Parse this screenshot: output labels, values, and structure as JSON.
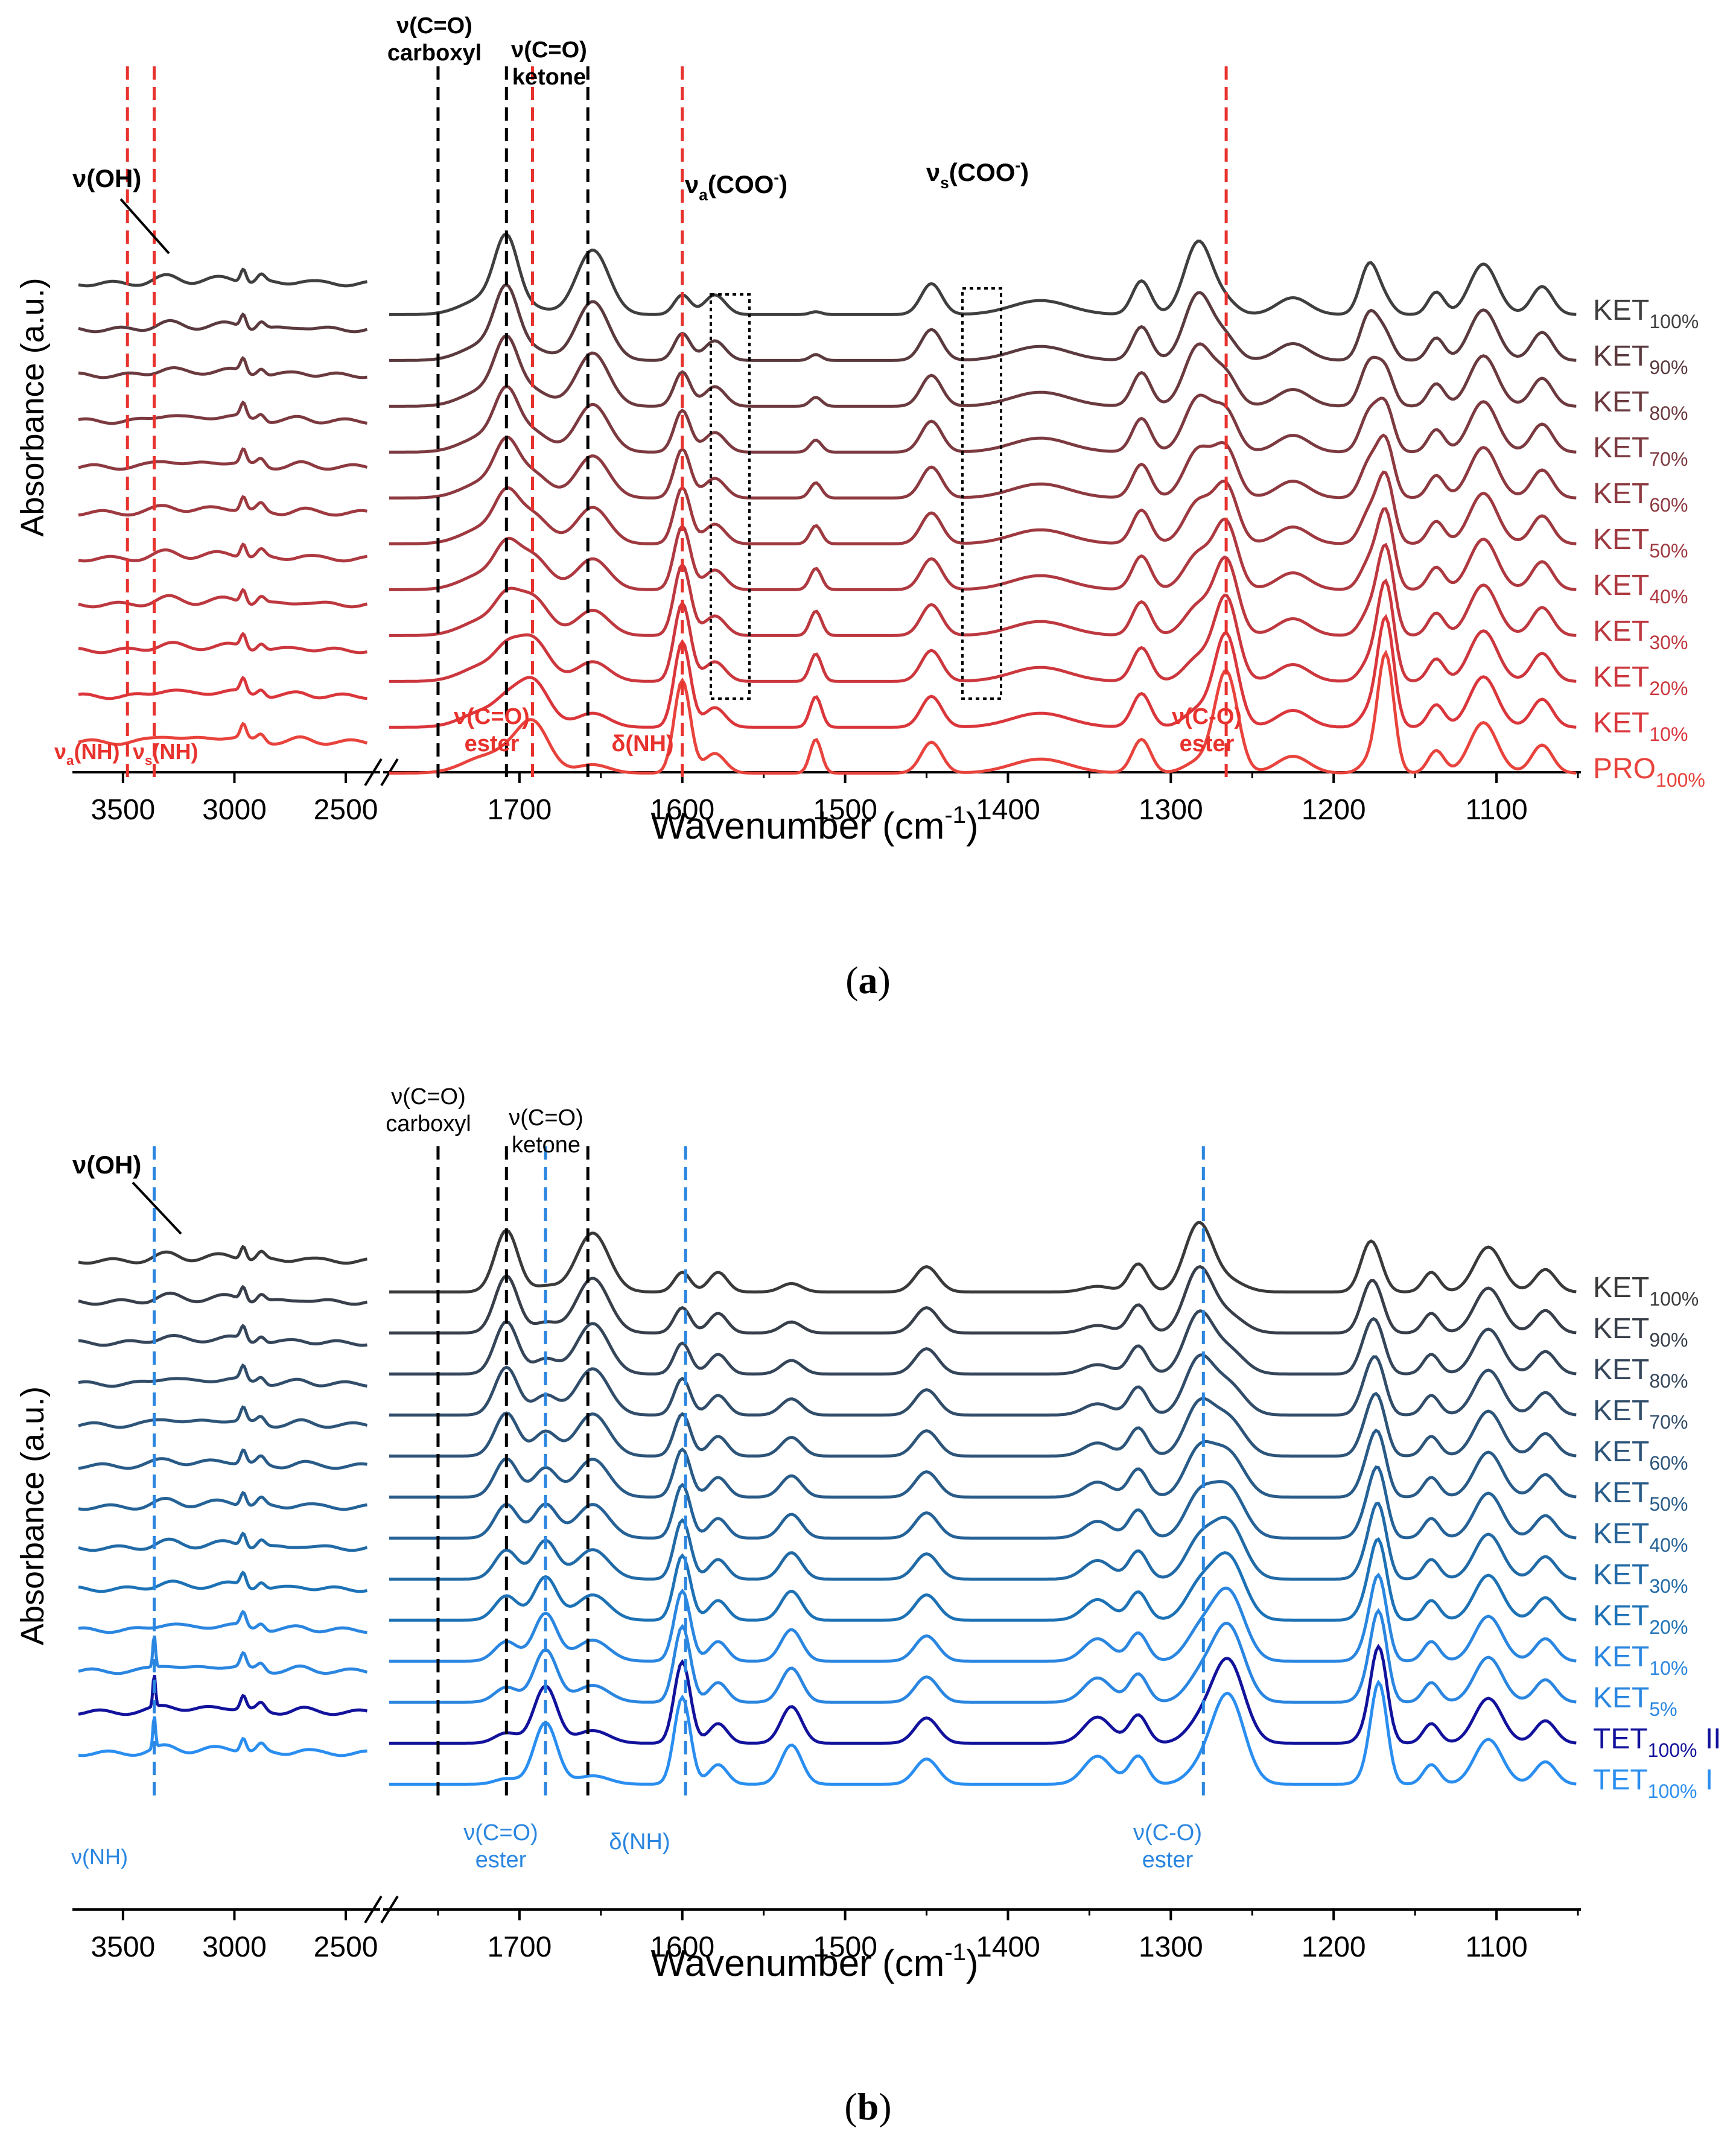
{
  "panels": [
    {
      "id": "a",
      "caption_letter": "a",
      "x_label_main": "Wavenumber (cm",
      "x_label_sup": "-1",
      "x_label_end": ")",
      "y_label": "Absorbance (a.u.)",
      "left_ticks": [
        "3500",
        "3000",
        "2500"
      ],
      "right_ticks": [
        "1700",
        "1600",
        "1500",
        "1400",
        "1300",
        "1200",
        "1100"
      ],
      "labels": [
        {
          "name": "ν(OH)",
          "color": "#000000",
          "bold": true
        },
        {
          "name": "ν(C=O)",
          "name2": "carboxyl",
          "color": "#000000"
        },
        {
          "name": "ν(C=O)",
          "name2": "ketone",
          "color": "#000000"
        },
        {
          "name": "ν",
          "sub": "a",
          "after": "(COO",
          "sup": "-",
          "end": ")",
          "color": "#000000"
        },
        {
          "name": "ν",
          "sub": "s",
          "after": "(COO",
          "sup": "-",
          "end": ")",
          "color": "#000000"
        },
        {
          "name": "ν",
          "sub": "a",
          "after": "(NH)",
          "color": "#e8322d"
        },
        {
          "name": "ν",
          "sub": "s",
          "after": "(NH)",
          "color": "#e8322d"
        },
        {
          "name": "ν(C=O)",
          "name2": "ester",
          "color": "#e8322d"
        },
        {
          "name": "δ(NH)",
          "color": "#e8322d"
        },
        {
          "name": "ν(C-O)",
          "name2": "ester",
          "color": "#e8322d"
        }
      ]
    },
    {
      "id": "b",
      "caption_letter": "b",
      "x_label_main": "Wavenumber (cm",
      "x_label_sup": "-1",
      "x_label_end": ")",
      "y_label": "Absorbance (a.u.)",
      "left_ticks": [
        "3500",
        "3000",
        "2500"
      ],
      "right_ticks": [
        "1700",
        "1600",
        "1500",
        "1400",
        "1300",
        "1200",
        "1100"
      ],
      "labels": [
        {
          "name": "ν(OH)",
          "color": "#000000"
        },
        {
          "name": "ν(C=O)",
          "name2": "carboxyl",
          "color": "#000000"
        },
        {
          "name": "ν(C=O)",
          "name2": "ketone",
          "color": "#000000"
        },
        {
          "name": "ν(NH)",
          "color": "#2a86e0"
        },
        {
          "name": "ν(C=O)",
          "name2": "ester",
          "color": "#2a86e0"
        },
        {
          "name": "δ(NH)",
          "color": "#2a86e0"
        },
        {
          "name": "ν(C-O)",
          "name2": "ester",
          "color": "#2a86e0"
        }
      ]
    }
  ],
  "chart_data": [
    {
      "type": "line",
      "title": "(a)",
      "xlabel": "Wavenumber (cm-1)",
      "ylabel": "Absorbance (a.u.)",
      "x_break": {
        "left_range": [
          3700,
          2400
        ],
        "right_range": [
          1780,
          1050
        ]
      },
      "series": [
        {
          "name": "KET",
          "sub": "100%",
          "color": "#3f3f3f"
        },
        {
          "name": "KET",
          "sub": "90%",
          "color": "#5a3a3e"
        },
        {
          "name": "KET",
          "sub": "80%",
          "color": "#6b3a3f"
        },
        {
          "name": "KET",
          "sub": "70%",
          "color": "#7c3a40"
        },
        {
          "name": "KET",
          "sub": "60%",
          "color": "#8d3940"
        },
        {
          "name": "KET",
          "sub": "50%",
          "color": "#9e3940"
        },
        {
          "name": "KET",
          "sub": "40%",
          "color": "#ae3940"
        },
        {
          "name": "KET",
          "sub": "30%",
          "color": "#bd383f"
        },
        {
          "name": "KET",
          "sub": "20%",
          "color": "#cc373e"
        },
        {
          "name": "KET",
          "sub": "10%",
          "color": "#da363c"
        },
        {
          "name": "PRO",
          "sub": "100%",
          "color": "#e8433c"
        }
      ],
      "marker_lines": [
        {
          "x": 1750,
          "color": "#000000"
        },
        {
          "x": 1708,
          "color": "#000000"
        },
        {
          "x": 1658,
          "color": "#000000"
        },
        {
          "x": 1692,
          "color": "#e8322d"
        },
        {
          "x": 1600,
          "color": "#e8322d"
        },
        {
          "x": 1266,
          "color": "#e8322d"
        },
        {
          "x": 3480,
          "color": "#e8322d"
        },
        {
          "x": 3360,
          "color": "#e8322d"
        }
      ]
    },
    {
      "type": "line",
      "title": "(b)",
      "xlabel": "Wavenumber (cm-1)",
      "ylabel": "Absorbance (a.u.)",
      "x_break": {
        "left_range": [
          3700,
          2400
        ],
        "right_range": [
          1780,
          1050
        ]
      },
      "series": [
        {
          "name": "KET",
          "sub": "100%",
          "color": "#3a3a3a"
        },
        {
          "name": "KET",
          "sub": "90%",
          "color": "#383f4a"
        },
        {
          "name": "KET",
          "sub": "80%",
          "color": "#35465a"
        },
        {
          "name": "KET",
          "sub": "70%",
          "color": "#314d6a"
        },
        {
          "name": "KET",
          "sub": "60%",
          "color": "#2d5479"
        },
        {
          "name": "KET",
          "sub": "50%",
          "color": "#295b88"
        },
        {
          "name": "KET",
          "sub": "40%",
          "color": "#256297"
        },
        {
          "name": "KET",
          "sub": "30%",
          "color": "#216aa6"
        },
        {
          "name": "KET",
          "sub": "20%",
          "color": "#1d72b6"
        },
        {
          "name": "KET",
          "sub": "10%",
          "color": "#2a86e0"
        },
        {
          "name": "KET",
          "sub": "5%",
          "color": "#2a86e0"
        },
        {
          "name": "TET",
          "sub": "100%",
          "after": " II",
          "color": "#12129c"
        },
        {
          "name": "TET",
          "sub": "100%",
          "after": " I",
          "color": "#2a8ef0"
        }
      ],
      "marker_lines": [
        {
          "x": 1750,
          "color": "#000000"
        },
        {
          "x": 1708,
          "color": "#000000"
        },
        {
          "x": 1658,
          "color": "#000000"
        },
        {
          "x": 1684,
          "color": "#2a86e0"
        },
        {
          "x": 1598,
          "color": "#2a86e0"
        },
        {
          "x": 1280,
          "color": "#2a86e0"
        },
        {
          "x": 3360,
          "color": "#2a86e0"
        }
      ]
    }
  ]
}
